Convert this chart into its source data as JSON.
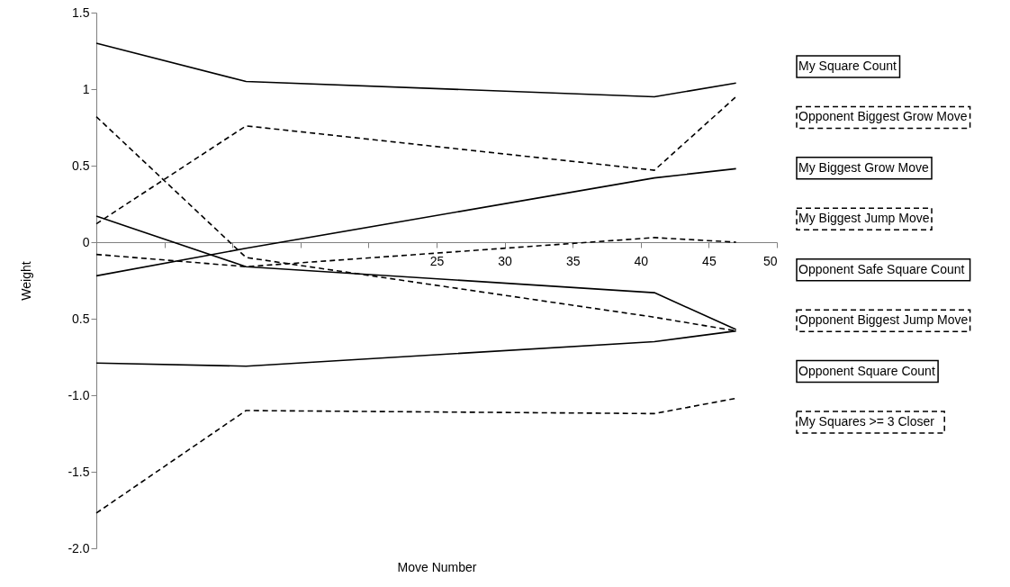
{
  "chart_data": {
    "type": "line",
    "xlabel": "Move Number",
    "ylabel": "Weight",
    "x": [
      0,
      11,
      41,
      47
    ],
    "xlim": [
      0,
      50
    ],
    "xticks": [
      {
        "value": 5,
        "label": null
      },
      {
        "value": 10,
        "label": null
      },
      {
        "value": 15,
        "label": null
      },
      {
        "value": 20,
        "label": null
      },
      25,
      30,
      35,
      40,
      45,
      50
    ],
    "ylim": [
      -2,
      1.5
    ],
    "yticks": [
      {
        "value": 1.5,
        "label": "1.5"
      },
      1,
      0.5,
      0,
      {
        "value": -0.5,
        "label": "0.5"
      },
      {
        "value": -1,
        "label": "-1.0"
      },
      {
        "value": -1.5,
        "label": "-1.5"
      },
      {
        "value": -2,
        "label": "-2.0"
      }
    ],
    "grid": false,
    "legend": "right",
    "marker": "none",
    "series": [
      {
        "name": "My Square Count",
        "color": "#000000",
        "line_style": "solid",
        "values": [
          1.3,
          1.05,
          0.95,
          1.04
        ]
      },
      {
        "name": "Opponent Biggest Grow Move",
        "color": "#000000",
        "line_style": "dashed",
        "values": [
          0.12,
          0.76,
          0.47,
          0.95
        ]
      },
      {
        "name": "My Biggest Grow Move",
        "color": "#000000",
        "line_style": "solid",
        "values": [
          -0.22,
          -0.04,
          0.42,
          0.48
        ]
      },
      {
        "name": "My Biggest Jump Move",
        "color": "#000000",
        "line_style": "dashed",
        "values": [
          -0.08,
          -0.16,
          0.03,
          0
        ]
      },
      {
        "name": "Opponent Safe Square Count",
        "color": "#000000",
        "line_style": "solid",
        "values": [
          0.17,
          -0.16,
          -0.33,
          -0.57
        ]
      },
      {
        "name": "Opponent Biggest Jump Move",
        "color": "#000000",
        "line_style": "dashed",
        "values": [
          0.82,
          -0.1,
          -0.49,
          -0.58
        ]
      },
      {
        "name": "Opponent Square Count",
        "color": "#000000",
        "line_style": "solid",
        "values": [
          -0.79,
          -0.81,
          -0.65,
          -0.58
        ]
      },
      {
        "name": "My Squares >= 3 Closer",
        "color": "#000000",
        "line_style": "dashed",
        "values": [
          -1.77,
          -1.1,
          -1.12,
          -1.02
        ]
      }
    ]
  }
}
